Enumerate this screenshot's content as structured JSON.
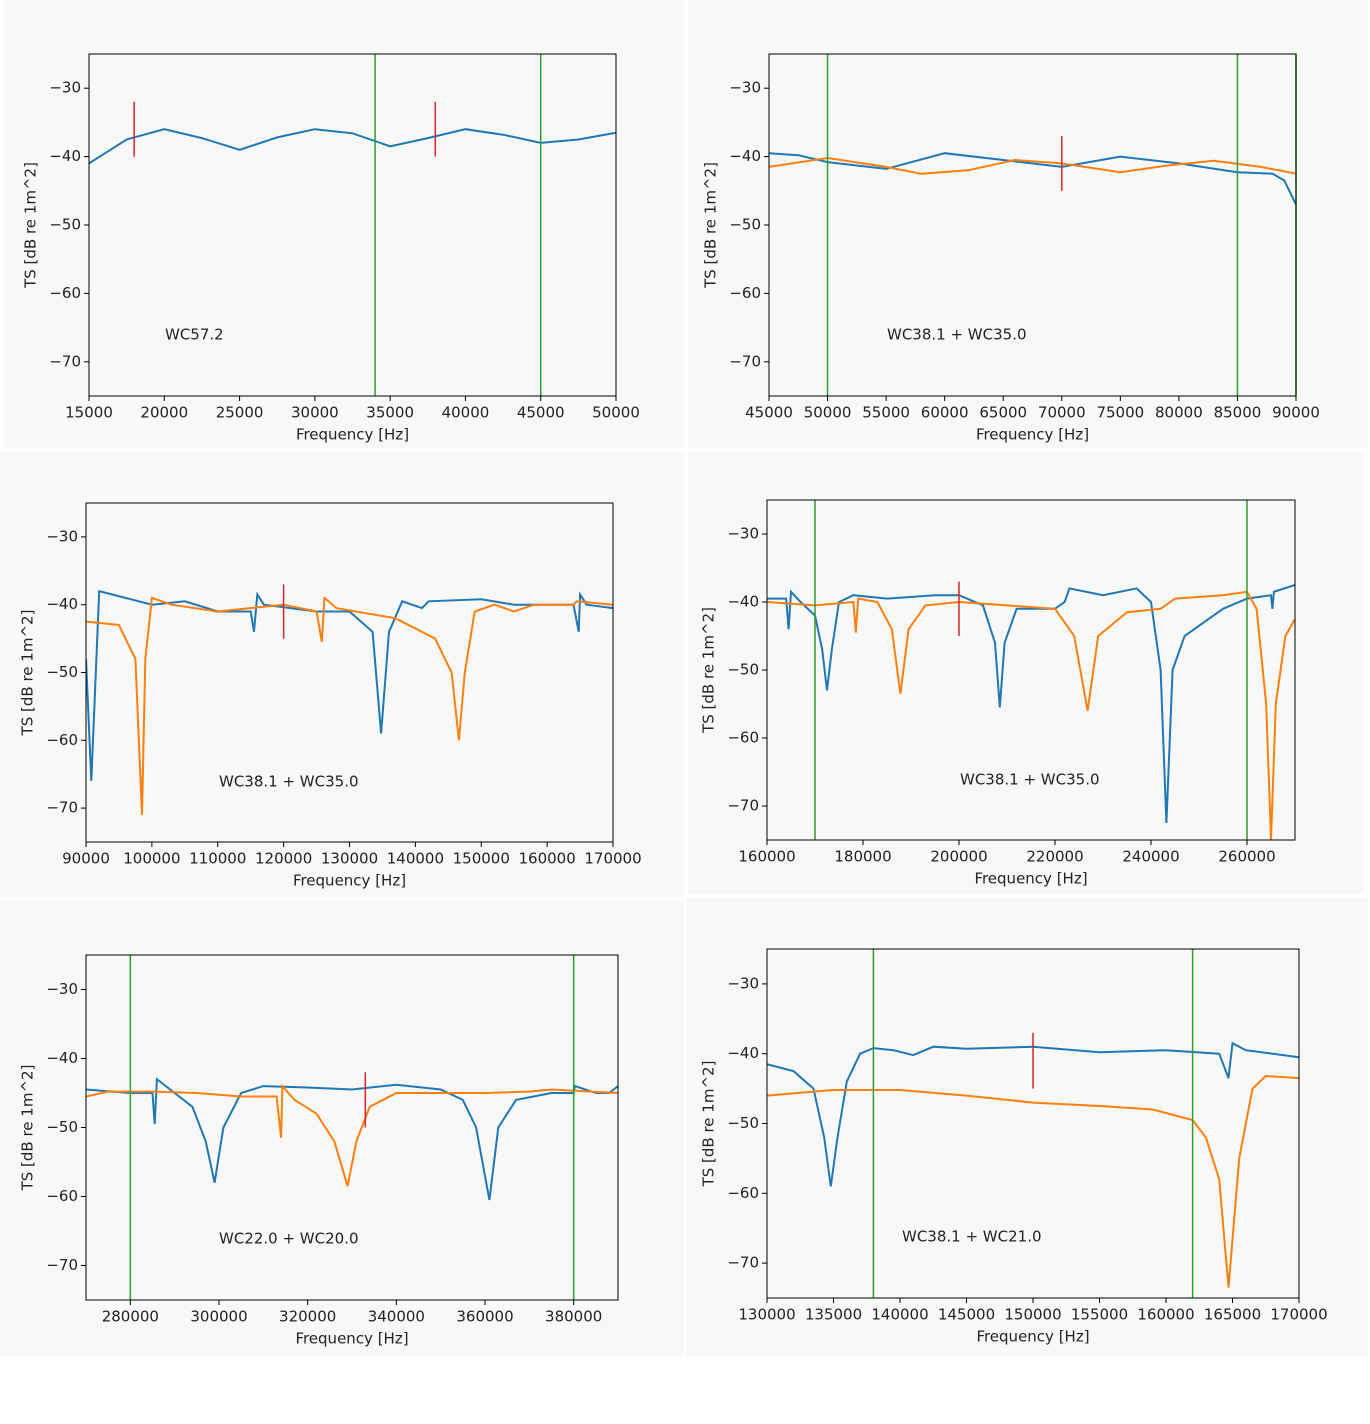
{
  "chart_data": [
    {
      "type": "line",
      "xlabel": "Frequency [Hz]",
      "ylabel": "TS [dB re 1m^2]",
      "annotation": "WC57.2",
      "xlim": [
        15000,
        50000
      ],
      "xticks": [
        15000,
        20000,
        25000,
        30000,
        35000,
        40000,
        45000,
        50000
      ],
      "ylim": [
        -75,
        -25
      ],
      "yticks": [
        {
          "value": -30,
          "label": "−30"
        },
        {
          "value": -40,
          "label": "−40"
        },
        {
          "value": -50,
          "label": "−50"
        },
        {
          "value": -60,
          "label": "−60"
        },
        {
          "value": -70,
          "label": "−70"
        }
      ],
      "series": [
        {
          "color": "#1f77b4",
          "x": [
            15000,
            17500,
            20000,
            22500,
            25000,
            27500,
            30000,
            32500,
            35000,
            37500,
            40000,
            42500,
            45000,
            47500,
            50000
          ],
          "values": [
            -41,
            -37.5,
            -36,
            -37.3,
            -39,
            -37.2,
            -36,
            -36.6,
            -38.5,
            -37.3,
            -36,
            -36.8,
            -38,
            -37.5,
            -36.5
          ]
        }
      ],
      "vlines": [
        {
          "x": 34000,
          "color": "#2ca02c"
        },
        {
          "x": 45000,
          "color": "#2ca02c"
        }
      ],
      "markers": [
        {
          "x": 18000,
          "y": [
            -40,
            -32
          ],
          "color": "#d62728"
        },
        {
          "x": 38000,
          "y": [
            -40,
            -32
          ],
          "color": "#d62728"
        }
      ]
    },
    {
      "type": "line",
      "xlabel": "Frequency [Hz]",
      "ylabel": "TS [dB re 1m^2]",
      "annotation": "WC38.1 + WC35.0",
      "xlim": [
        45000,
        90000
      ],
      "xticks": [
        45000,
        50000,
        55000,
        60000,
        65000,
        70000,
        75000,
        80000,
        85000,
        90000
      ],
      "ylim": [
        -75,
        -25
      ],
      "yticks": [
        {
          "value": -30,
          "label": "−30"
        },
        {
          "value": -40,
          "label": "−40"
        },
        {
          "value": -50,
          "label": "−50"
        },
        {
          "value": -60,
          "label": "−60"
        },
        {
          "value": -70,
          "label": "−70"
        }
      ],
      "series": [
        {
          "color": "#1f77b4",
          "x": [
            45000,
            47500,
            50000,
            55000,
            60000,
            65000,
            70000,
            75000,
            80000,
            85000,
            88000,
            89000,
            90000
          ],
          "values": [
            -39.5,
            -39.8,
            -40.8,
            -41.8,
            -39.5,
            -40.5,
            -41.5,
            -40,
            -41,
            -42.3,
            -42.5,
            -43.5,
            -47
          ]
        },
        {
          "color": "#ff7f0e",
          "x": [
            45000,
            50000,
            55000,
            58000,
            62000,
            66000,
            70000,
            75000,
            79000,
            83000,
            87000,
            90000
          ],
          "values": [
            -41.5,
            -40.2,
            -41.5,
            -42.5,
            -42,
            -40.5,
            -41,
            -42.3,
            -41.3,
            -40.6,
            -41.5,
            -42.5
          ]
        }
      ],
      "vlines": [
        {
          "x": 50000,
          "color": "#2ca02c"
        },
        {
          "x": 85000,
          "color": "#2ca02c"
        },
        {
          "x": 90000,
          "color": "#2ca02c"
        }
      ],
      "markers": [
        {
          "x": 70000,
          "y": [
            -45,
            -37
          ],
          "color": "#d62728"
        }
      ]
    },
    {
      "type": "line",
      "xlabel": "Frequency [Hz]",
      "ylabel": "TS [dB re 1m^2]",
      "annotation": "WC38.1 + WC35.0",
      "xlim": [
        90000,
        170000
      ],
      "xticks": [
        90000,
        100000,
        110000,
        120000,
        130000,
        140000,
        150000,
        160000,
        170000
      ],
      "ylim": [
        -75,
        -25
      ],
      "yticks": [
        {
          "value": -30,
          "label": "−30"
        },
        {
          "value": -40,
          "label": "−40"
        },
        {
          "value": -50,
          "label": "−50"
        },
        {
          "value": -60,
          "label": "−60"
        },
        {
          "value": -70,
          "label": "−70"
        }
      ],
      "series": [
        {
          "color": "#1f77b4",
          "x": [
            90000,
            90800,
            92000,
            100000,
            105000,
            110000,
            115000,
            115500,
            116000,
            117000,
            125000,
            130000,
            133500,
            134800,
            136000,
            138000,
            141000,
            142000,
            150000,
            155000,
            164000,
            164800,
            165000,
            166000,
            170000
          ],
          "values": [
            -48,
            -66,
            -38,
            -40,
            -39.5,
            -41,
            -41,
            -44,
            -38.5,
            -40,
            -41,
            -41,
            -44,
            -59,
            -44,
            -39.5,
            -40.5,
            -39.5,
            -39.2,
            -40,
            -40,
            -44,
            -38.5,
            -40,
            -40.5
          ]
        },
        {
          "color": "#ff7f0e",
          "x": [
            90000,
            95000,
            97500,
            98500,
            99000,
            100000,
            103000,
            110000,
            120000,
            125000,
            125800,
            126200,
            128000,
            137000,
            143000,
            145500,
            146600,
            147500,
            149000,
            152000,
            155000,
            158000,
            164000,
            164500,
            170000
          ],
          "values": [
            -42.5,
            -43,
            -48,
            -71,
            -48,
            -39,
            -40,
            -41,
            -40,
            -41,
            -45.5,
            -39,
            -40.5,
            -42,
            -45,
            -50,
            -60,
            -50,
            -41,
            -40,
            -41,
            -40,
            -40,
            -39.5,
            -40
          ]
        }
      ],
      "vlines": [],
      "markers": [
        {
          "x": 120000,
          "y": [
            -45,
            -37
          ],
          "color": "#d62728"
        }
      ]
    },
    {
      "type": "line",
      "xlabel": "Frequency [Hz]",
      "ylabel": "TS [dB re 1m^2]",
      "annotation": "WC38.1 + WC35.0",
      "xlim": [
        160000,
        270000
      ],
      "xticks": [
        160000,
        180000,
        200000,
        220000,
        240000,
        260000
      ],
      "ylim": [
        -75,
        -25
      ],
      "yticks": [
        {
          "value": -30,
          "label": "−30"
        },
        {
          "value": -40,
          "label": "−40"
        },
        {
          "value": -50,
          "label": "−50"
        },
        {
          "value": -60,
          "label": "−60"
        },
        {
          "value": -70,
          "label": "−70"
        }
      ],
      "series": [
        {
          "color": "#1f77b4",
          "x": [
            160000,
            164000,
            164500,
            165000,
            167000,
            170000,
            171500,
            172500,
            173500,
            175000,
            178000,
            185000,
            195000,
            200000,
            205000,
            207500,
            208500,
            209500,
            212000,
            220000,
            222000,
            223000,
            230000,
            237000,
            240000,
            242000,
            243200,
            244500,
            247000,
            255000,
            260000,
            265000,
            265300,
            265600,
            270000
          ],
          "values": [
            -39.5,
            -39.5,
            -44,
            -38.5,
            -40,
            -42,
            -47,
            -53,
            -47,
            -40,
            -39,
            -39.5,
            -39,
            -39,
            -40.5,
            -46,
            -55.5,
            -46,
            -41,
            -41,
            -40,
            -38,
            -39,
            -38,
            -40,
            -50,
            -72.5,
            -50,
            -45,
            -41,
            -39.5,
            -39,
            -41,
            -38.5,
            -37.5
          ]
        },
        {
          "color": "#ff7f0e",
          "x": [
            160000,
            170000,
            178000,
            178500,
            179000,
            183000,
            186000,
            187800,
            189500,
            193000,
            200000,
            210000,
            220000,
            224000,
            226800,
            229000,
            235000,
            242000,
            245000,
            255000,
            260000,
            262000,
            264000,
            265000,
            266000,
            268000,
            270000
          ],
          "values": [
            -40,
            -40.5,
            -40,
            -44.5,
            -39.5,
            -40,
            -44,
            -53.5,
            -44,
            -40.5,
            -40,
            -40.5,
            -41,
            -45,
            -56,
            -45,
            -41.5,
            -41,
            -39.5,
            -39,
            -38.5,
            -41,
            -55,
            -75,
            -55,
            -45,
            -42.5
          ]
        }
      ],
      "vlines": [
        {
          "x": 170000,
          "color": "#2ca02c"
        },
        {
          "x": 260000,
          "color": "#2ca02c"
        }
      ],
      "markers": [
        {
          "x": 200000,
          "y": [
            -45,
            -37
          ],
          "color": "#d62728"
        }
      ]
    },
    {
      "type": "line",
      "xlabel": "Frequency [Hz]",
      "ylabel": "TS [dB re 1m^2]",
      "annotation": "WC22.0 + WC20.0",
      "xlim": [
        270000,
        390000
      ],
      "xticks": [
        280000,
        300000,
        320000,
        340000,
        360000,
        380000
      ],
      "ylim": [
        -75,
        -25
      ],
      "yticks": [
        {
          "value": -30,
          "label": "−30"
        },
        {
          "value": -40,
          "label": "−40"
        },
        {
          "value": -50,
          "label": "−50"
        },
        {
          "value": -60,
          "label": "−60"
        },
        {
          "value": -70,
          "label": "−70"
        }
      ],
      "series": [
        {
          "color": "#1f77b4",
          "x": [
            270000,
            280000,
            285000,
            285500,
            286000,
            290000,
            294000,
            297000,
            299000,
            301000,
            305000,
            310000,
            320000,
            330000,
            340000,
            350000,
            355000,
            358000,
            361000,
            363000,
            367000,
            375000,
            380000,
            380300,
            385000,
            388000,
            390000
          ],
          "values": [
            -44.5,
            -45,
            -45,
            -49.5,
            -43,
            -45,
            -47,
            -52,
            -58,
            -50,
            -45,
            -44,
            -44.2,
            -44.5,
            -43.8,
            -44.5,
            -46,
            -50,
            -60.5,
            -50,
            -46,
            -45,
            -45,
            -44,
            -45,
            -45,
            -44
          ]
        },
        {
          "color": "#ff7f0e",
          "x": [
            270000,
            275000,
            285000,
            295000,
            305000,
            313000,
            314000,
            314300,
            317000,
            322000,
            326000,
            329000,
            331000,
            334000,
            340000,
            350000,
            360000,
            370000,
            375000,
            390000
          ],
          "values": [
            -45.5,
            -44.8,
            -44.8,
            -45,
            -45.5,
            -45.5,
            -51.5,
            -44,
            -46,
            -48,
            -52,
            -58.5,
            -52,
            -47,
            -45,
            -45,
            -45,
            -44.8,
            -44.5,
            -45
          ]
        }
      ],
      "vlines": [
        {
          "x": 280000,
          "color": "#2ca02c"
        },
        {
          "x": 380000,
          "color": "#2ca02c"
        }
      ],
      "markers": [
        {
          "x": 333000,
          "y": [
            -50,
            -42
          ],
          "color": "#d62728"
        }
      ]
    },
    {
      "type": "line",
      "xlabel": "Frequency [Hz]",
      "ylabel": "TS [dB re 1m^2]",
      "annotation": "WC38.1 + WC21.0",
      "xlim": [
        130000,
        170000
      ],
      "xticks": [
        130000,
        135000,
        140000,
        145000,
        150000,
        155000,
        160000,
        165000,
        170000
      ],
      "ylim": [
        -75,
        -25
      ],
      "yticks": [
        {
          "value": -30,
          "label": "−30"
        },
        {
          "value": -40,
          "label": "−40"
        },
        {
          "value": -50,
          "label": "−50"
        },
        {
          "value": -60,
          "label": "−60"
        },
        {
          "value": -70,
          "label": "−70"
        }
      ],
      "series": [
        {
          "color": "#1f77b4",
          "x": [
            130000,
            132000,
            133500,
            134300,
            134800,
            135300,
            136000,
            137000,
            138000,
            139500,
            141000,
            142500,
            145000,
            150000,
            155000,
            160000,
            164000,
            164700,
            165000,
            166000,
            170000
          ],
          "values": [
            -41.5,
            -42.5,
            -45,
            -52,
            -59,
            -52,
            -44,
            -40,
            -39.2,
            -39.5,
            -40.2,
            -39,
            -39.3,
            -39,
            -39.8,
            -39.5,
            -40,
            -43.5,
            -38.5,
            -39.5,
            -40.5
          ]
        },
        {
          "color": "#ff7f0e",
          "x": [
            130000,
            135000,
            140000,
            145000,
            150000,
            155000,
            159000,
            162000,
            163000,
            164000,
            164700,
            165500,
            166500,
            167500,
            170000
          ],
          "values": [
            -46,
            -45.2,
            -45.2,
            -46,
            -47,
            -47.5,
            -48,
            -49.5,
            -52,
            -58,
            -73.5,
            -55,
            -45,
            -43.2,
            -43.5
          ]
        }
      ],
      "vlines": [
        {
          "x": 138000,
          "color": "#2ca02c"
        },
        {
          "x": 162000,
          "color": "#2ca02c"
        }
      ],
      "markers": [
        {
          "x": 150000,
          "y": [
            -45,
            -37
          ],
          "color": "#d62728"
        }
      ]
    }
  ]
}
